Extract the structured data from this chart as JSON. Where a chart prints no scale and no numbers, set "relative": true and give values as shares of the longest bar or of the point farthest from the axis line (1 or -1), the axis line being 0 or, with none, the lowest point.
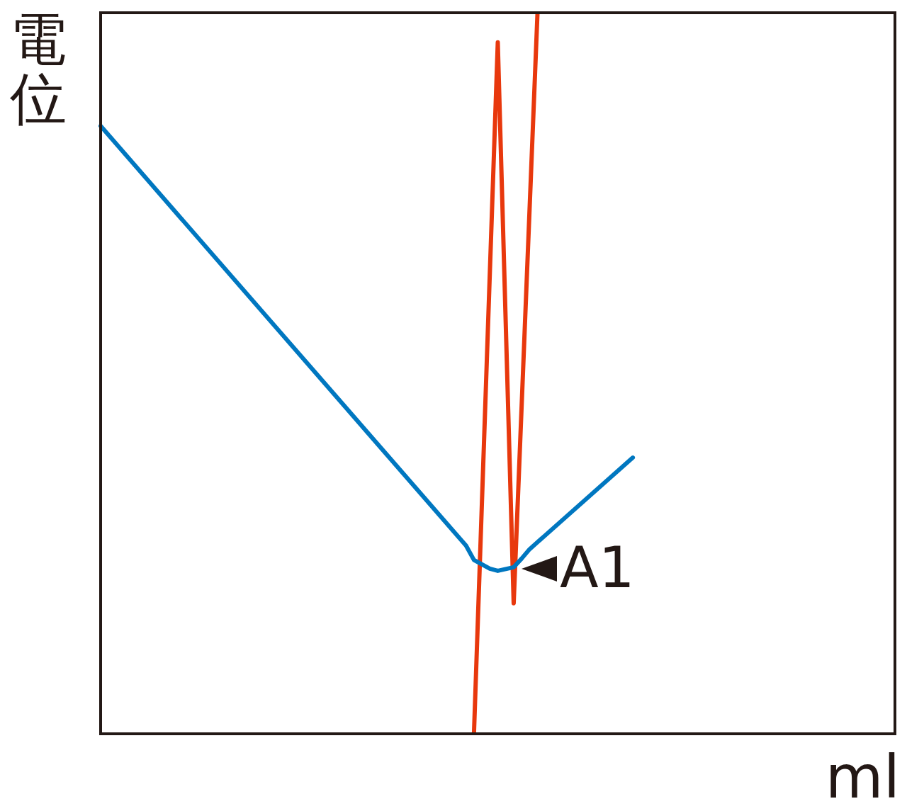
{
  "chart_data": {
    "type": "line",
    "relative": true,
    "xlabel": "ml",
    "ylabel": "電位",
    "grid": false,
    "legend": false,
    "marker": "none",
    "line_style": "solid",
    "categories": [
      null,
      null,
      null,
      null,
      null,
      null,
      null,
      null,
      null,
      null,
      null,
      null,
      null,
      null,
      null,
      null,
      null,
      null,
      null,
      null,
      null,
      null,
      null,
      null,
      null,
      null,
      null,
      null,
      null,
      null,
      null,
      null,
      null,
      null,
      null,
      null,
      null,
      null,
      null,
      null,
      null,
      null,
      null,
      null,
      null,
      null,
      null,
      null,
      null,
      null,
      null,
      null,
      null,
      null,
      null,
      null,
      null,
      null,
      null,
      null,
      null,
      null,
      null,
      null,
      null,
      null,
      null,
      null,
      null,
      null,
      null,
      null,
      null,
      null,
      null,
      null,
      null,
      null,
      null,
      null,
      null,
      null,
      null,
      null,
      null,
      null,
      null,
      null,
      null,
      null,
      null,
      null,
      null,
      null,
      null,
      null,
      null,
      null,
      null,
      null,
      null
    ],
    "series": [
      {
        "color": "#0077c0",
        "values": [
          0.843,
          null,
          null,
          null,
          null,
          null,
          null,
          null,
          null,
          null,
          null,
          null,
          null,
          null,
          null,
          null,
          null,
          null,
          null,
          null,
          null,
          null,
          null,
          null,
          null,
          null,
          null,
          null,
          null,
          null,
          null,
          null,
          null,
          null,
          null,
          null,
          null,
          null,
          null,
          null,
          null,
          null,
          null,
          null,
          null,
          null,
          0.261,
          0.241,
          null,
          0.229,
          0.226,
          null,
          0.231,
          0.243,
          0.256,
          null,
          null,
          null,
          null,
          null,
          null,
          null,
          null,
          null,
          null,
          null,
          null,
          0.383,
          null,
          null,
          null,
          null,
          null,
          null,
          null,
          null,
          null,
          null,
          null,
          null,
          null,
          null,
          null,
          null,
          null,
          null,
          null,
          null,
          null,
          null,
          null,
          null,
          null,
          null,
          null,
          null,
          null,
          null,
          null,
          null,
          null
        ]
      },
      {
        "color": "#e8380d",
        "values": [
          null,
          null,
          null,
          null,
          null,
          null,
          null,
          null,
          null,
          null,
          null,
          null,
          null,
          null,
          null,
          null,
          null,
          null,
          null,
          null,
          null,
          null,
          null,
          null,
          null,
          null,
          null,
          null,
          null,
          null,
          null,
          null,
          null,
          null,
          null,
          null,
          null,
          null,
          null,
          null,
          null,
          null,
          null,
          null,
          null,
          null,
          null,
          0,
          null,
          null,
          0.959,
          null,
          0.181,
          null,
          null,
          1,
          null,
          null,
          null,
          null,
          null,
          null,
          null,
          null,
          null,
          null,
          null,
          null,
          null,
          null,
          null,
          null,
          null,
          null,
          null,
          null,
          null,
          null,
          null,
          null,
          null,
          null,
          null,
          null,
          null,
          null,
          null,
          null,
          null,
          null,
          null,
          null,
          null,
          null,
          null,
          null,
          null,
          null,
          null,
          null,
          null
        ]
      }
    ],
    "annotations": [
      "A1"
    ]
  }
}
